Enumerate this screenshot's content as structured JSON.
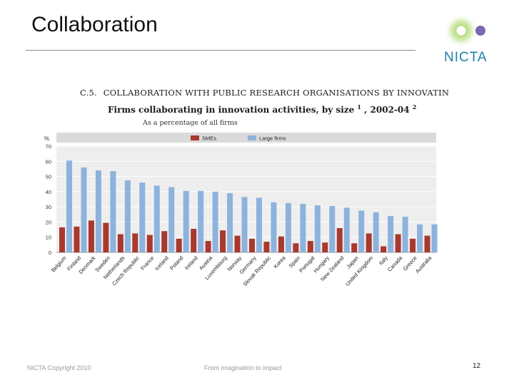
{
  "slide": {
    "title": "Collaboration",
    "logo_text": "NICTA",
    "footer_left": "NICTA Copyright 2010",
    "footer_center": "From imagination to impact",
    "page_number": "12"
  },
  "colors": {
    "sme": "#a8392e",
    "large": "#8db3dd",
    "grid_bg": "#eeeeee",
    "header_band": "#dadada",
    "logo_green": "#8dc63f",
    "logo_purple": "#7b68b0",
    "logo_blue": "#1d7fa8"
  },
  "chart_data": {
    "type": "bar",
    "code": "C.5.",
    "title": "COLLABORATION WITH PUBLIC RESEARCH ORGANISATIONS BY INNOVATING FIRMS",
    "subtitle_main": "Firms collaborating in innovation activities, by size",
    "subtitle_sup1": "1",
    "subtitle_years": ", 2002-04",
    "subtitle_sup2": "2",
    "note": "As a percentage of all firms",
    "ylabel": "%",
    "ylim": [
      0,
      70
    ],
    "yticks": [
      0,
      10,
      20,
      30,
      40,
      50,
      60,
      70
    ],
    "categories": [
      "Belgium",
      "Finland",
      "Denmark",
      "Sweden",
      "Netherlands",
      "Czech Republic",
      "France",
      "Iceland",
      "Poland",
      "Ireland",
      "Austria",
      "Luxembourg",
      "Norway",
      "Germany",
      "Slovak Republic",
      "Korea",
      "Spain",
      "Portugal",
      "Hungary",
      "New Zealand",
      "Japan",
      "United Kingdom",
      "Italy",
      "Canada",
      "Greece",
      "Australia"
    ],
    "series": [
      {
        "name": "SMEs",
        "values": [
          16.5,
          17,
          21,
          19.5,
          12,
          12.5,
          11.5,
          14,
          9,
          15.5,
          7.5,
          14.5,
          11,
          9,
          7,
          10.5,
          6,
          7.5,
          6.5,
          16,
          6,
          12.5,
          4,
          12,
          9,
          11
        ]
      },
      {
        "name": "Large firms",
        "values": [
          60.5,
          56,
          54,
          53.5,
          47.5,
          46,
          44,
          43,
          40.5,
          40.5,
          40,
          39,
          36.5,
          36,
          33,
          32.5,
          32,
          31,
          30.5,
          29.5,
          27.5,
          26.5,
          24,
          23.5,
          18.5,
          18.5
        ]
      }
    ]
  }
}
